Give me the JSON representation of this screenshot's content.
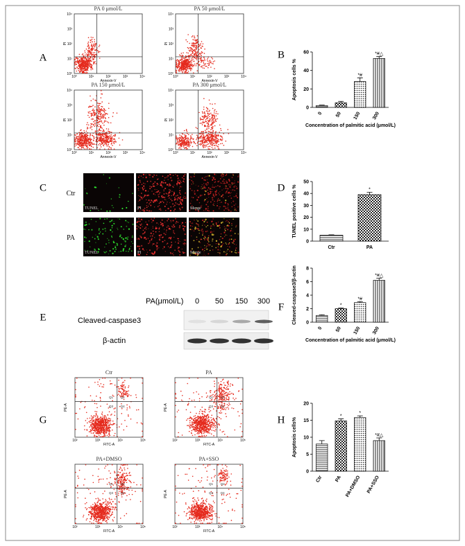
{
  "panel_labels": [
    "A",
    "B",
    "C",
    "D",
    "E",
    "F",
    "G",
    "H"
  ],
  "flow_a": {
    "plots": [
      "PA 0 μmol/L",
      "PA 50 μmol/L",
      "PA 150 μmol/L",
      "PA 300 μmol/L"
    ],
    "y_label": "PI",
    "x_label": "Annexin-V",
    "ticks": [
      "10⁰",
      "10¹",
      "10²",
      "10³",
      "10⁴"
    ]
  },
  "tunel": {
    "rows": [
      "Ctr",
      "PA"
    ],
    "channels": [
      "TUNEL",
      "PI",
      "Merge"
    ]
  },
  "western": {
    "header": "PA(μmol/L)",
    "lanes": [
      "0",
      "50",
      "150",
      "300"
    ],
    "rows": [
      "Cleaved-caspase3",
      "β-actin"
    ]
  },
  "flow_g": {
    "plots": [
      "Ctr",
      "PA",
      "PA+DMSO",
      "PA+SSO"
    ],
    "y_label": "PE-A",
    "x_label": "FITC-A",
    "quadrants": [
      "Q1",
      "Q2",
      "Q3",
      "Q4"
    ],
    "ticks": [
      "10²",
      "10³",
      "10⁴",
      "10⁵"
    ]
  },
  "chart_data": [
    {
      "type": "bar",
      "y_label": "Apoptosis cells %",
      "x_label": "Concentration of palmitic acid (μmol/L)",
      "categories": [
        "0",
        "50",
        "150",
        "300"
      ],
      "values": [
        2,
        5,
        28,
        53
      ],
      "errors": [
        0.5,
        1.5,
        4,
        2
      ],
      "annotations": [
        null,
        null,
        "*#",
        "*#△"
      ],
      "ylim": [
        0,
        60
      ],
      "yticks": [
        0,
        20,
        40,
        60
      ]
    },
    {
      "type": "bar",
      "y_label": "TUNEL positive cells %",
      "categories": [
        "Ctr",
        "PA"
      ],
      "values": [
        5,
        39
      ],
      "errors": [
        0.3,
        2
      ],
      "annotations": [
        null,
        "*"
      ],
      "ylim": [
        0,
        50
      ],
      "yticks": [
        0,
        10,
        20,
        30,
        40,
        50
      ]
    },
    {
      "type": "bar",
      "y_label": "Cleaved-caspase3/β-actin",
      "x_label": "Concentration of palmitic acid (μmol/L)",
      "categories": [
        "0",
        "50",
        "150",
        "300"
      ],
      "values": [
        1,
        2,
        2.9,
        6.2
      ],
      "errors": [
        0.1,
        0.1,
        0.15,
        0.3
      ],
      "annotations": [
        null,
        "*",
        "*#",
        "*#△"
      ],
      "ylim": [
        0,
        8
      ],
      "yticks": [
        0,
        2,
        4,
        6,
        8
      ]
    },
    {
      "type": "bar",
      "y_label": "Apoptosis cells%",
      "categories": [
        "Ctr",
        "PA",
        "PA+DMSO",
        "PA+SSO"
      ],
      "values": [
        8,
        14.8,
        15.8,
        9
      ],
      "errors": [
        1,
        0.6,
        0.5,
        0.8
      ],
      "annotations": [
        null,
        "*",
        "*",
        "*#△"
      ],
      "ylim": [
        0,
        20
      ],
      "yticks": [
        0,
        5,
        10,
        15,
        20
      ]
    }
  ]
}
